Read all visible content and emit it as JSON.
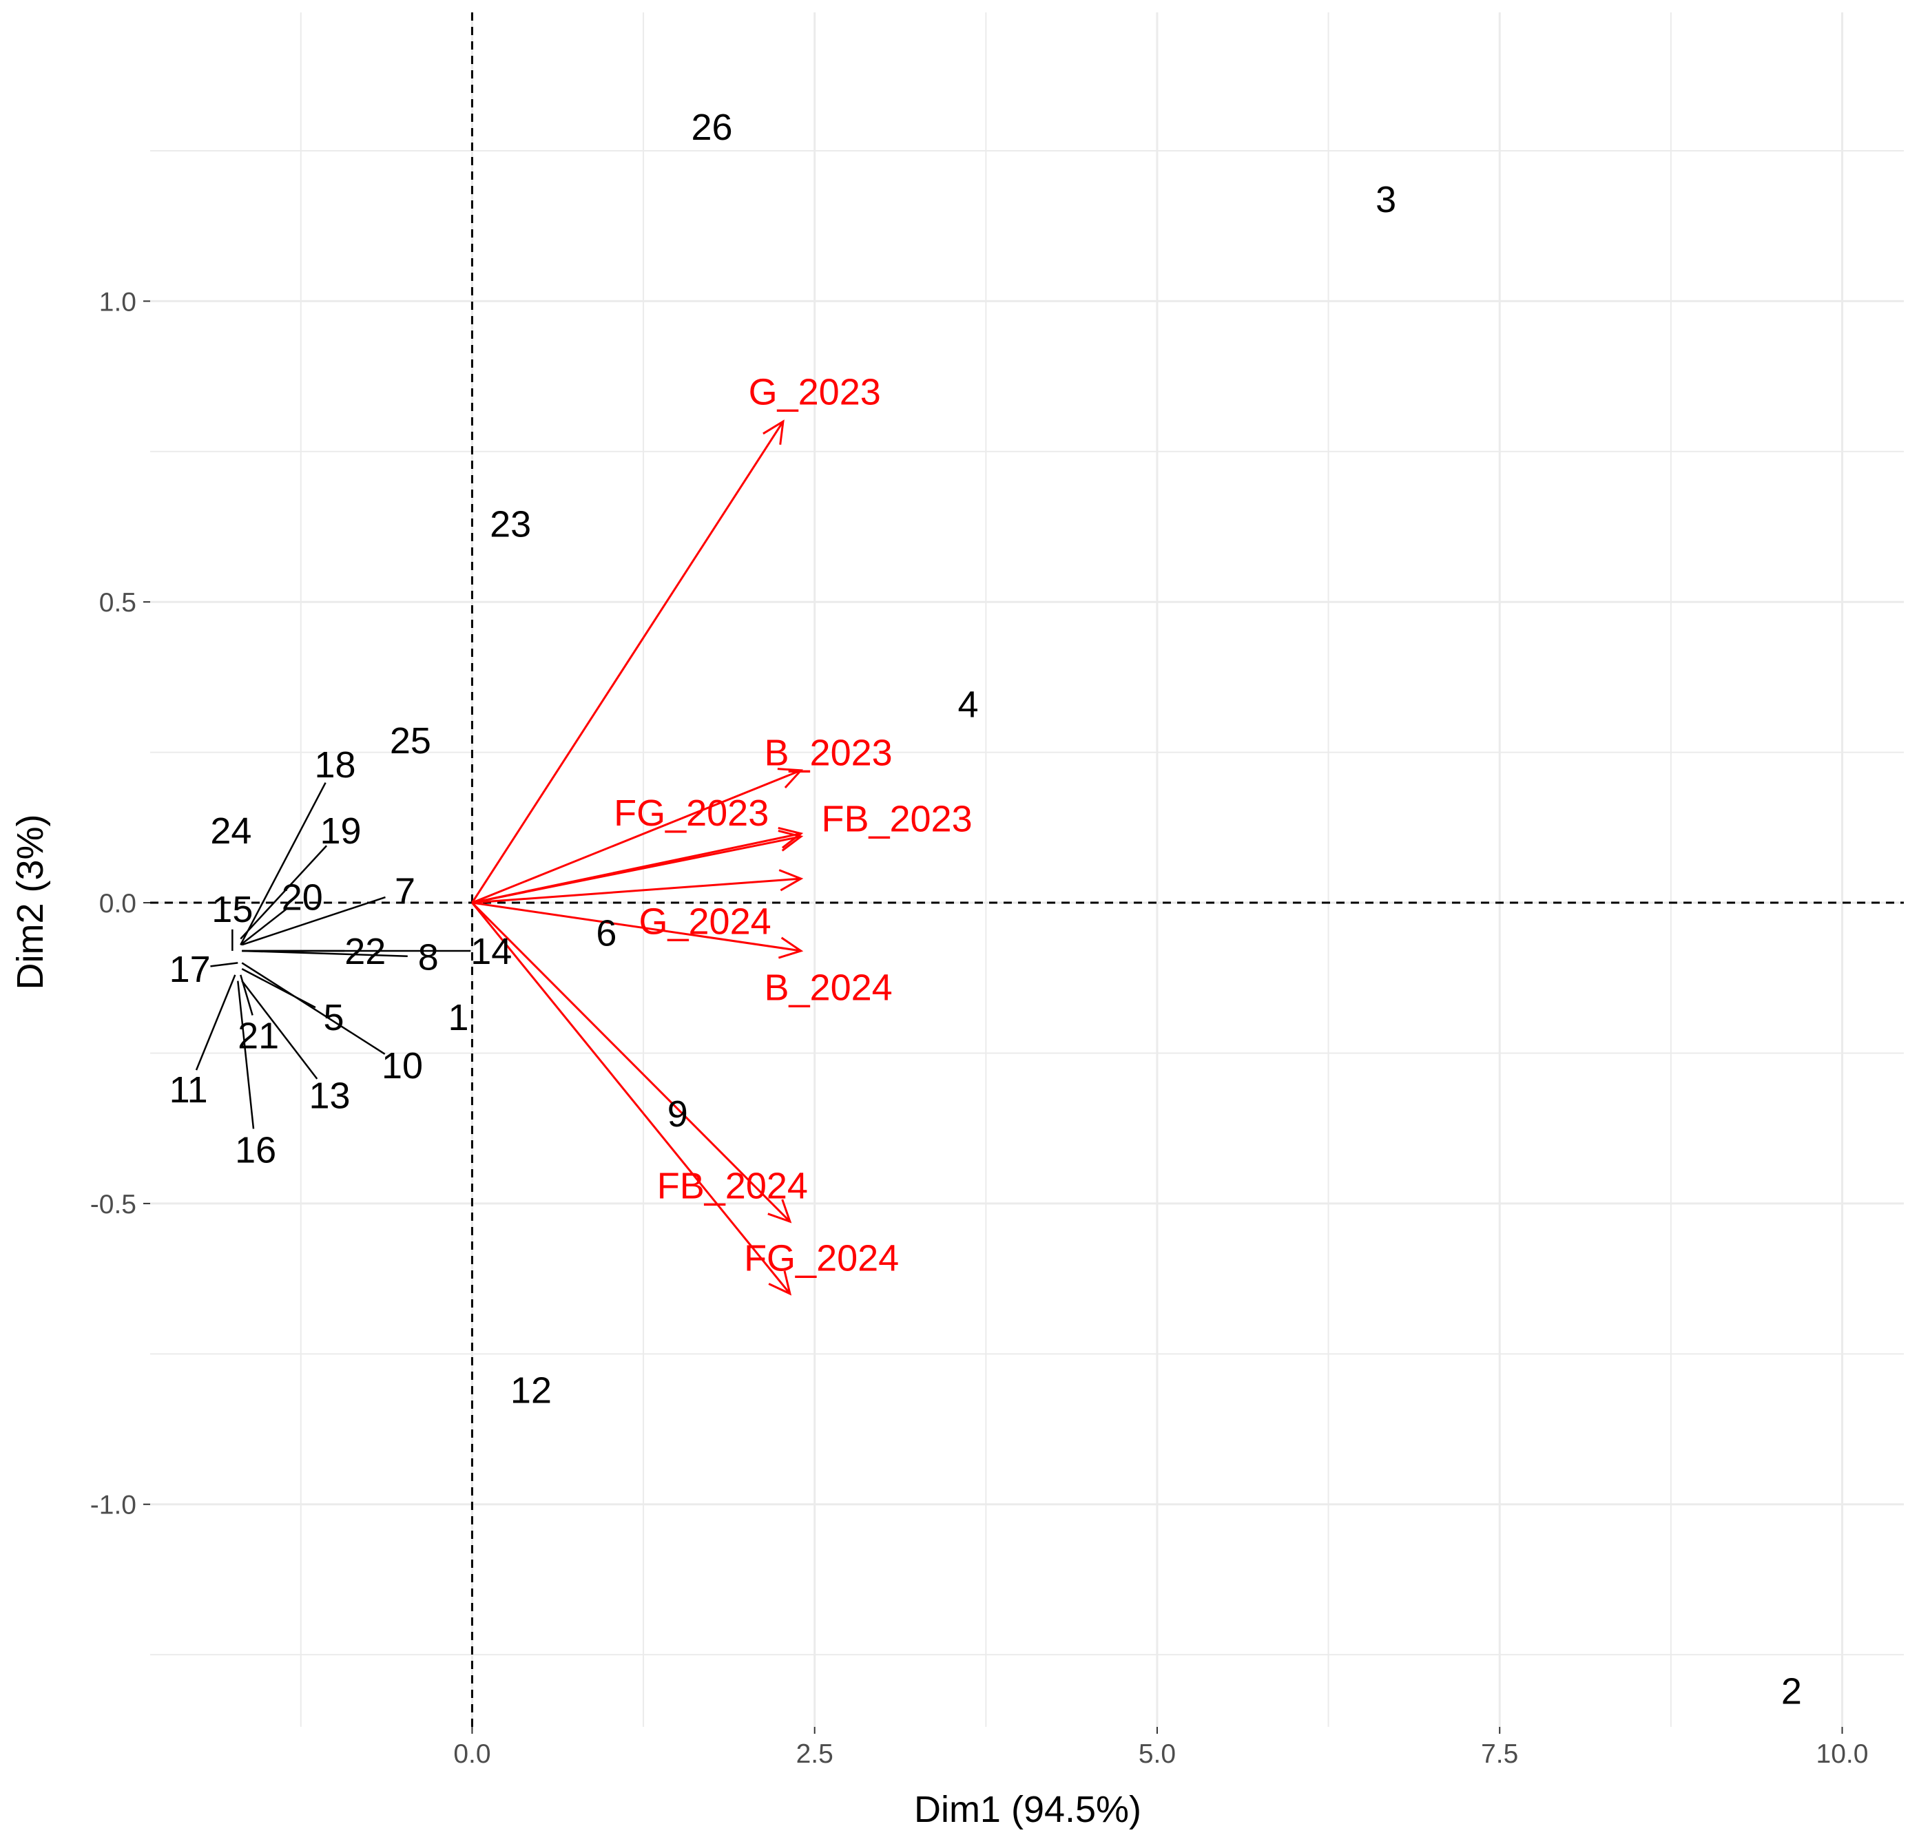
{
  "chart_data": {
    "type": "scatter",
    "subtype": "pca-biplot",
    "title": "",
    "xlabel": "Dim1 (94.5%)",
    "ylabel": "Dim2 (3%)",
    "xlim": [
      -2.35,
      10.45
    ],
    "ylim": [
      -1.37,
      1.48
    ],
    "x_ticks": [
      {
        "value": 0.0,
        "label": "0.0"
      },
      {
        "value": 2.5,
        "label": "2.5"
      },
      {
        "value": 5.0,
        "label": "5.0"
      },
      {
        "value": 7.5,
        "label": "7.5"
      },
      {
        "value": 10.0,
        "label": "10.0"
      }
    ],
    "y_ticks": [
      {
        "value": 1.0,
        "label": "1.0"
      },
      {
        "value": 0.5,
        "label": "0.5"
      },
      {
        "value": 0.0,
        "label": "0.0"
      },
      {
        "value": -0.5,
        "label": "-0.5"
      },
      {
        "value": -1.0,
        "label": "-1.0"
      }
    ],
    "grid": true,
    "reference_lines": {
      "x": 0,
      "y": 0,
      "style": "dashed"
    },
    "colors": {
      "observations": "#000000",
      "variables": "#ff0000",
      "grid": "#ebebeb",
      "tick_text": "#4d4d4d"
    },
    "observations": [
      {
        "label": "1",
        "x": -0.1,
        "y": -0.19,
        "lx": -0.1,
        "ly": -0.19
      },
      {
        "label": "2",
        "x": 9.63,
        "y": -1.31,
        "lx": 9.63,
        "ly": -1.31
      },
      {
        "label": "3",
        "x": 6.67,
        "y": 1.17,
        "lx": 6.67,
        "ly": 1.17
      },
      {
        "label": "4",
        "x": 3.62,
        "y": 0.33,
        "lx": 3.62,
        "ly": 0.33
      },
      {
        "label": "5",
        "x": -1.68,
        "y": -0.11,
        "lx": -1.01,
        "ly": -0.19
      },
      {
        "label": "6",
        "x": 0.98,
        "y": -0.05,
        "lx": 0.98,
        "ly": -0.05
      },
      {
        "label": "7",
        "x": -1.68,
        "y": -0.07,
        "lx": -0.49,
        "ly": 0.02
      },
      {
        "label": "8",
        "x": -1.68,
        "y": -0.08,
        "lx": -0.32,
        "ly": -0.09
      },
      {
        "label": "9",
        "x": 1.5,
        "y": -0.35,
        "lx": 1.5,
        "ly": -0.35
      },
      {
        "label": "10",
        "x": -1.68,
        "y": -0.1,
        "lx": -0.51,
        "ly": -0.27
      },
      {
        "label": "11",
        "x": -1.73,
        "y": -0.12,
        "lx": -2.07,
        "ly": -0.31
      },
      {
        "label": "12",
        "x": 0.43,
        "y": -0.81,
        "lx": 0.43,
        "ly": -0.81
      },
      {
        "label": "13",
        "x": -1.68,
        "y": -0.13,
        "lx": -1.04,
        "ly": -0.32
      },
      {
        "label": "14",
        "x": -1.68,
        "y": -0.08,
        "lx": 0.14,
        "ly": -0.08
      },
      {
        "label": "15",
        "x": -1.75,
        "y": -0.08,
        "lx": -1.75,
        "ly": -0.01
      },
      {
        "label": "16",
        "x": -1.71,
        "y": -0.13,
        "lx": -1.58,
        "ly": -0.41
      },
      {
        "label": "17",
        "x": -1.71,
        "y": -0.1,
        "lx": -2.06,
        "ly": -0.11
      },
      {
        "label": "18",
        "x": -1.69,
        "y": -0.07,
        "lx": -1.0,
        "ly": 0.23
      },
      {
        "label": "19",
        "x": -1.69,
        "y": -0.06,
        "lx": -0.96,
        "ly": 0.12
      },
      {
        "label": "20",
        "x": -1.69,
        "y": -0.07,
        "lx": -1.24,
        "ly": 0.01
      },
      {
        "label": "21",
        "x": -1.69,
        "y": -0.12,
        "lx": -1.56,
        "ly": -0.22
      },
      {
        "label": "22",
        "x": -1.68,
        "y": -0.08,
        "lx": -0.78,
        "ly": -0.08
      },
      {
        "label": "23",
        "x": 0.28,
        "y": 0.63,
        "lx": 0.28,
        "ly": 0.63
      },
      {
        "label": "24",
        "x": -1.76,
        "y": 0.12,
        "lx": -1.76,
        "ly": 0.12
      },
      {
        "label": "25",
        "x": -0.45,
        "y": 0.27,
        "lx": -0.45,
        "ly": 0.27
      },
      {
        "label": "26",
        "x": 1.75,
        "y": 1.29,
        "lx": 1.75,
        "ly": 1.29
      }
    ],
    "variables": [
      {
        "label": "G_2023",
        "x": 2.27,
        "y": 0.8,
        "lx": 2.5,
        "ly": 0.85
      },
      {
        "label": "B_2023",
        "x": 2.4,
        "y": 0.22,
        "lx": 2.6,
        "ly": 0.25
      },
      {
        "label": "FG_2023",
        "x": 2.4,
        "y": 0.11,
        "lx": 1.6,
        "ly": 0.15
      },
      {
        "label": "FB_2023",
        "x": 2.4,
        "y": 0.115,
        "lx": 3.1,
        "ly": 0.14
      },
      {
        "label": "G_2024",
        "x": 2.4,
        "y": 0.04,
        "lx": 1.7,
        "ly": -0.03
      },
      {
        "label": "B_2024",
        "x": 2.4,
        "y": -0.08,
        "lx": 2.6,
        "ly": -0.14
      },
      {
        "label": "FB_2024",
        "x": 2.32,
        "y": -0.53,
        "lx": 1.9,
        "ly": -0.47
      },
      {
        "label": "FG_2024",
        "x": 2.32,
        "y": -0.65,
        "lx": 2.55,
        "ly": -0.59
      }
    ]
  }
}
